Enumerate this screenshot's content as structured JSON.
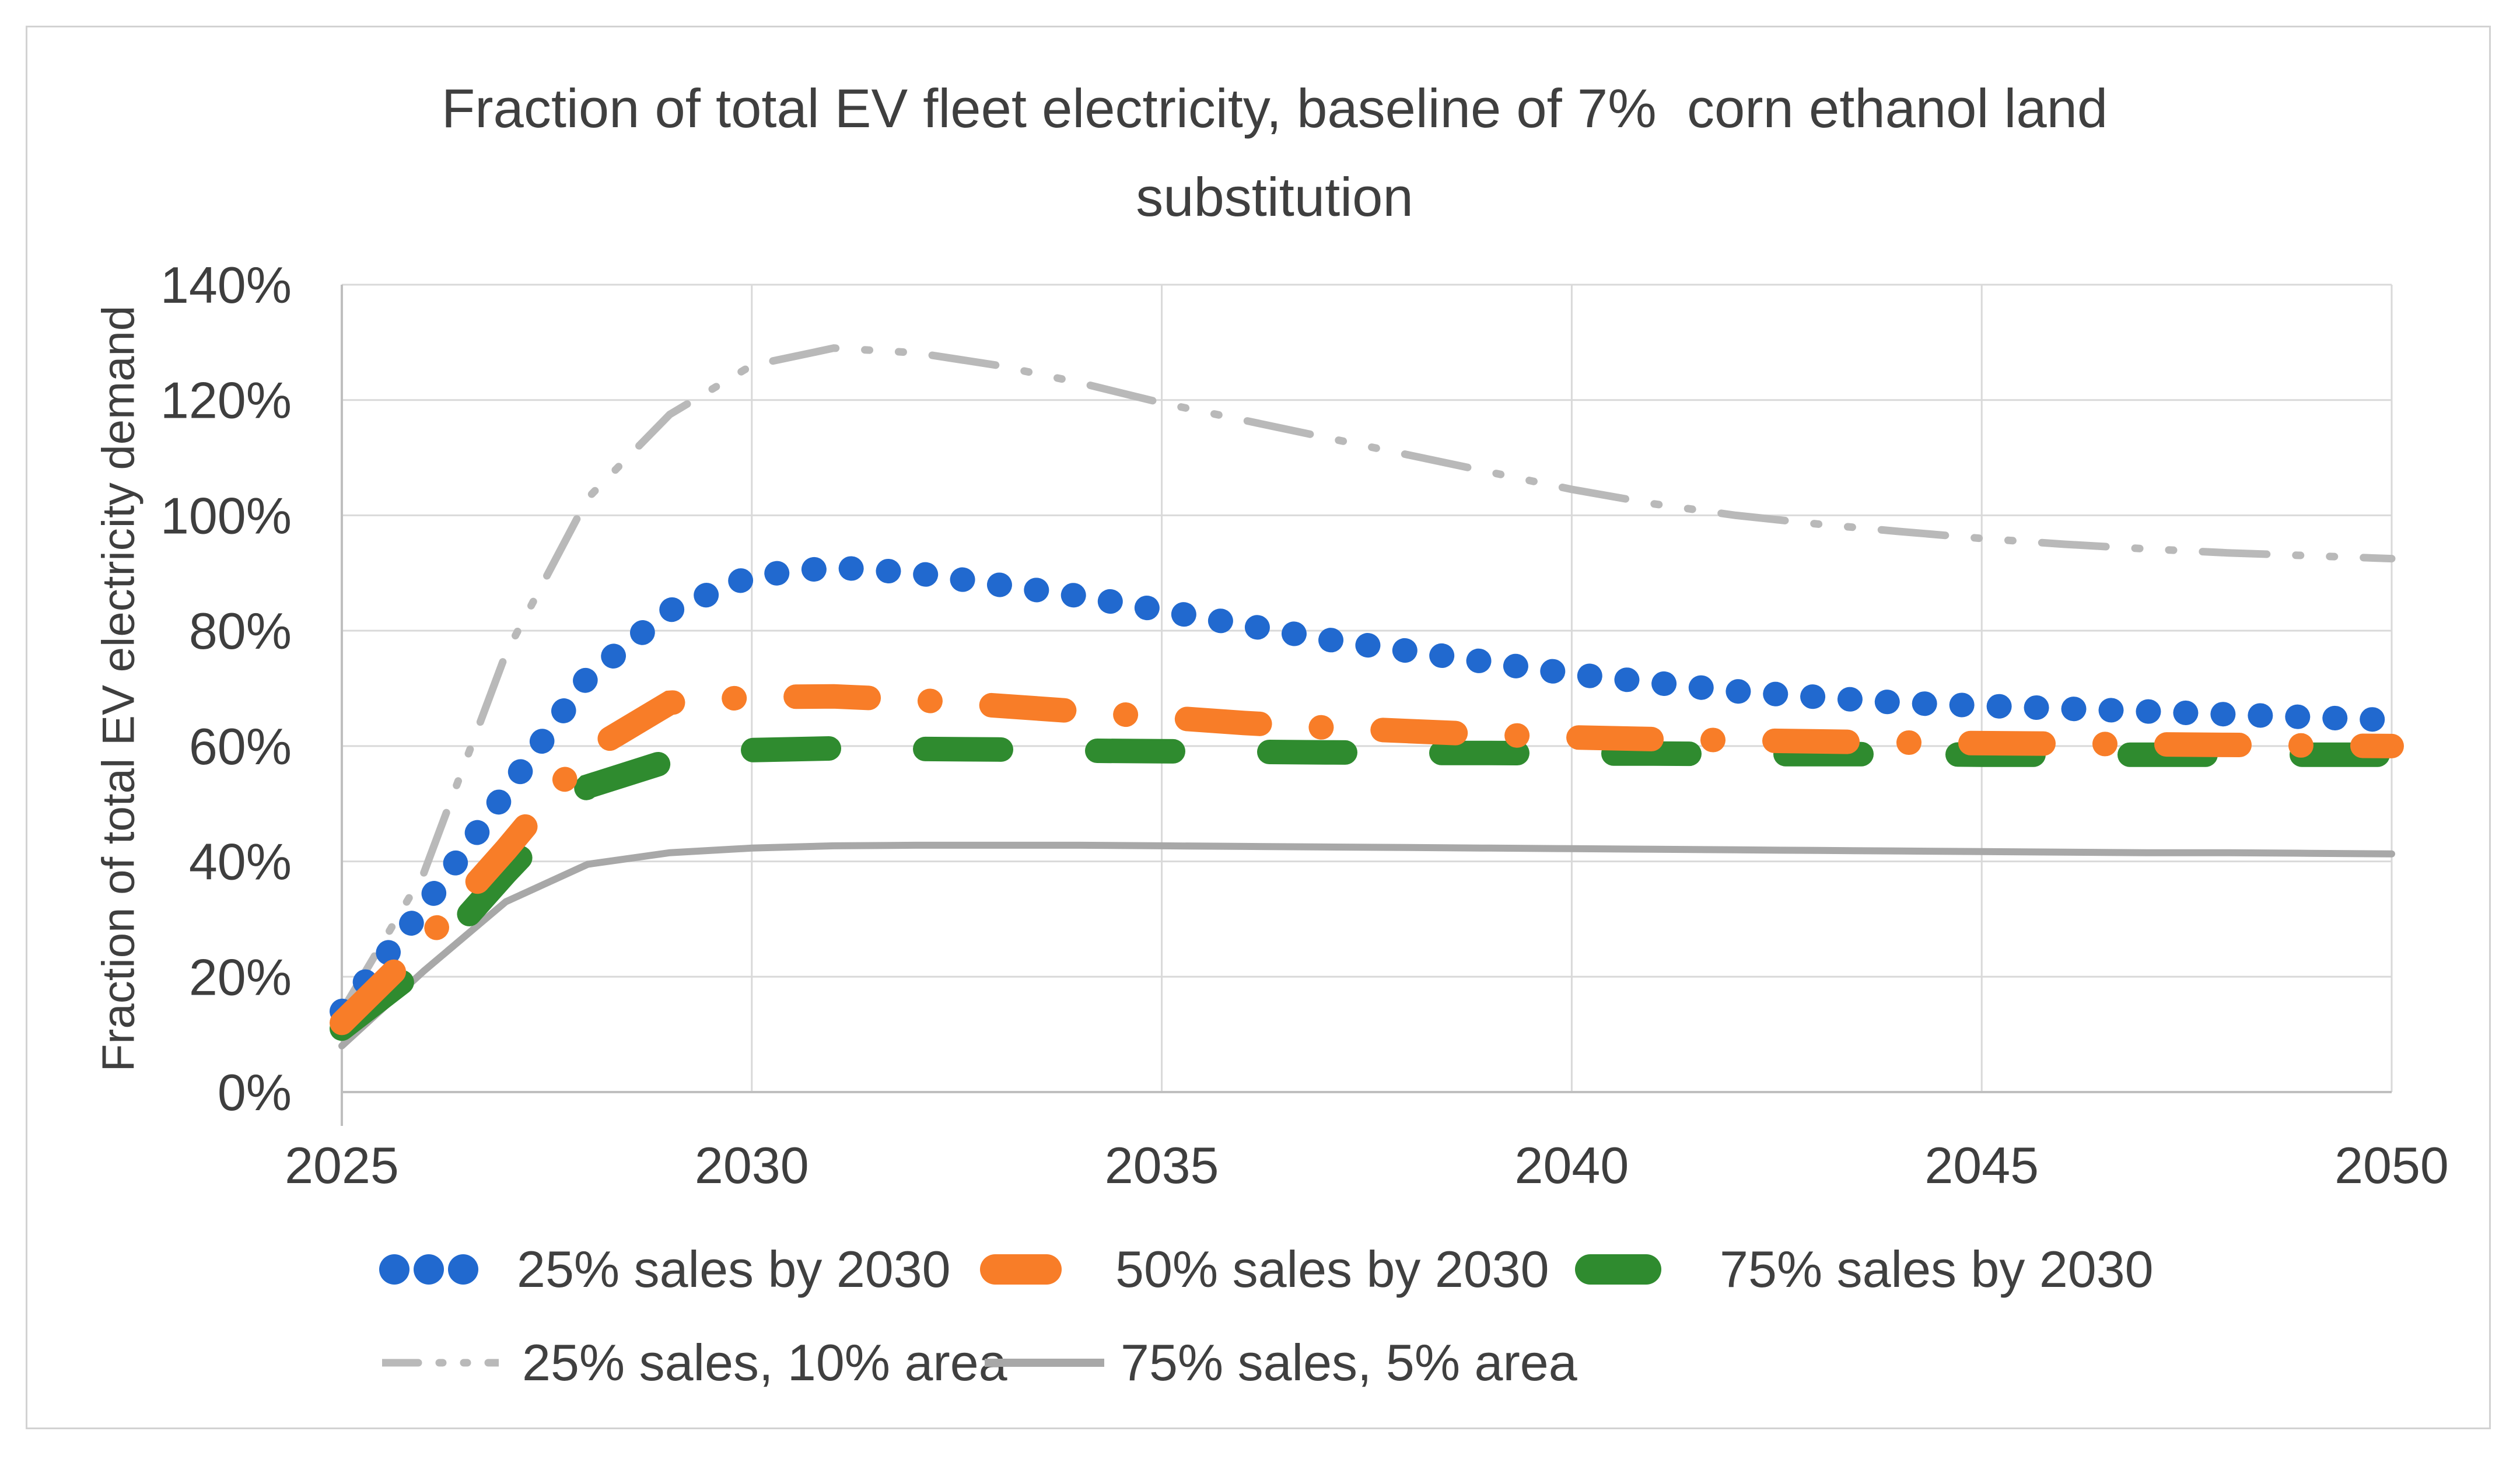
{
  "chart_data": {
    "type": "line",
    "title": "Fraction of total EV fleet electricity, baseline of 7%  corn ethanol land substitution",
    "title_lines": [
      "Fraction of total EV fleet electricity, baseline of 7%  corn ethanol land",
      "substitution"
    ],
    "ylabel": "Fraction of total EV electricity demand",
    "xlabel": "",
    "xlim": [
      2025,
      2050
    ],
    "ylim": [
      0,
      140
    ],
    "x_ticks": [
      2025,
      2030,
      2035,
      2040,
      2045,
      2050
    ],
    "y_ticks": [
      0,
      20,
      40,
      60,
      80,
      100,
      120,
      140
    ],
    "y_tick_labels": [
      "0%",
      "20%",
      "40%",
      "60%",
      "80%",
      "100%",
      "120%",
      "140%"
    ],
    "grid": true,
    "legend_position": "bottom",
    "grid_color": "#d9d9d9",
    "axis_color": "#bfbfbf",
    "text_color": "#3f3f3f",
    "x": [
      2025,
      2026,
      2027,
      2028,
      2029,
      2030,
      2031,
      2032,
      2033,
      2034,
      2035,
      2036,
      2037,
      2038,
      2039,
      2040,
      2041,
      2042,
      2043,
      2044,
      2045,
      2046,
      2047,
      2048,
      2049,
      2050
    ],
    "series": [
      {
        "name": "25% sales by 2030",
        "color": "#2169cf",
        "line_style": "round-dot",
        "values": [
          14,
          32,
          52,
          72,
          83.5,
          89.5,
          91,
          90,
          88,
          86,
          83.5,
          81,
          78.5,
          76.5,
          74.5,
          72.5,
          71,
          69.5,
          68.5,
          67.5,
          67,
          66.5,
          66,
          65.5,
          65,
          64.5
        ]
      },
      {
        "name": "50% sales by 2030",
        "color": "#f87d28",
        "line_style": "dash-dot-thick",
        "values": [
          12,
          26,
          42,
          59,
          67.5,
          68.5,
          68.6,
          68,
          67,
          66,
          65,
          64,
          63.2,
          62.6,
          62,
          61.5,
          61.2,
          61,
          60.8,
          60.6,
          60.5,
          60.4,
          60.3,
          60.2,
          60.1,
          60
        ]
      },
      {
        "name": "75% sales by 2030",
        "color": "#2f8b2f",
        "line_style": "dash-thick",
        "values": [
          11,
          22,
          38,
          53,
          57.5,
          59.3,
          59.6,
          59.5,
          59.4,
          59.2,
          59.1,
          59,
          58.9,
          58.8,
          58.8,
          58.7,
          58.7,
          58.6,
          58.6,
          58.6,
          58.5,
          58.5,
          58.5,
          58.5,
          58.5,
          58.5
        ]
      },
      {
        "name": "25% sales, 10% area",
        "color": "#b9b9b9",
        "line_style": "dash-dot-thin",
        "values": [
          14,
          38,
          76,
          103,
          117.5,
          126,
          129,
          128.2,
          126,
          123,
          119.5,
          116.5,
          113.5,
          110.5,
          107.5,
          104.5,
          102,
          100,
          98.5,
          97.2,
          96,
          95,
          94.2,
          93.5,
          93,
          92.5
        ]
      },
      {
        "name": "75% sales, 5% area",
        "color": "#a8a8a8",
        "line_style": "solid-thin",
        "values": [
          8,
          21,
          33,
          39.5,
          41.5,
          42.3,
          42.7,
          42.8,
          42.8,
          42.8,
          42.7,
          42.6,
          42.5,
          42.4,
          42.3,
          42.2,
          42.1,
          42,
          41.9,
          41.8,
          41.7,
          41.6,
          41.5,
          41.5,
          41.4,
          41.3
        ]
      }
    ]
  }
}
